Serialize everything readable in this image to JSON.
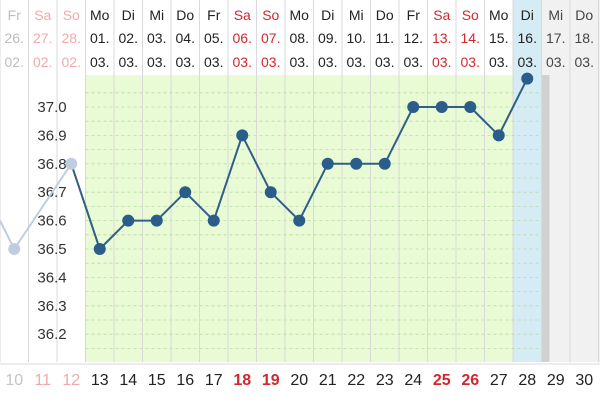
{
  "chart_data": {
    "type": "line",
    "ylim": [
      36.1,
      37.1
    ],
    "y_ticks": [
      36.2,
      36.3,
      36.4,
      36.5,
      36.6,
      36.7,
      36.8,
      36.9,
      37.0
    ],
    "y_tick_labels": [
      "36.2",
      "36.3",
      "36.4",
      "36.5",
      "36.6",
      "36.7",
      "36.8",
      "36.9",
      "37.0"
    ],
    "columns": [
      {
        "weekday": "Fr",
        "date": "26.",
        "month": "02.",
        "cycle_day": "10",
        "weekend": false,
        "active": false,
        "temp": 36.5
      },
      {
        "weekday": "Sa",
        "date": "27.",
        "month": "02.",
        "cycle_day": "11",
        "weekend": true,
        "active": false,
        "temp": null
      },
      {
        "weekday": "So",
        "date": "28.",
        "month": "02.",
        "cycle_day": "12",
        "weekend": true,
        "active": false,
        "temp": 36.8
      },
      {
        "weekday": "Mo",
        "date": "01.",
        "month": "03.",
        "cycle_day": "13",
        "weekend": false,
        "active": true,
        "temp": 36.5
      },
      {
        "weekday": "Di",
        "date": "02.",
        "month": "03.",
        "cycle_day": "14",
        "weekend": false,
        "active": true,
        "temp": 36.6
      },
      {
        "weekday": "Mi",
        "date": "03.",
        "month": "03.",
        "cycle_day": "15",
        "weekend": false,
        "active": true,
        "temp": 36.6
      },
      {
        "weekday": "Do",
        "date": "04.",
        "month": "03.",
        "cycle_day": "16",
        "weekend": false,
        "active": true,
        "temp": 36.7
      },
      {
        "weekday": "Fr",
        "date": "05.",
        "month": "03.",
        "cycle_day": "17",
        "weekend": false,
        "active": true,
        "temp": 36.6
      },
      {
        "weekday": "Sa",
        "date": "06.",
        "month": "03.",
        "cycle_day": "18",
        "weekend": true,
        "active": true,
        "temp": 36.9
      },
      {
        "weekday": "So",
        "date": "07.",
        "month": "03.",
        "cycle_day": "19",
        "weekend": true,
        "active": true,
        "temp": 36.7
      },
      {
        "weekday": "Mo",
        "date": "08.",
        "month": "03.",
        "cycle_day": "20",
        "weekend": false,
        "active": true,
        "temp": 36.6
      },
      {
        "weekday": "Di",
        "date": "09.",
        "month": "03.",
        "cycle_day": "21",
        "weekend": false,
        "active": true,
        "temp": 36.8
      },
      {
        "weekday": "Mi",
        "date": "10.",
        "month": "03.",
        "cycle_day": "22",
        "weekend": false,
        "active": true,
        "temp": 36.8
      },
      {
        "weekday": "Do",
        "date": "11.",
        "month": "03.",
        "cycle_day": "23",
        "weekend": false,
        "active": true,
        "temp": 36.8
      },
      {
        "weekday": "Fr",
        "date": "12.",
        "month": "03.",
        "cycle_day": "24",
        "weekend": false,
        "active": true,
        "temp": 37.0
      },
      {
        "weekday": "Sa",
        "date": "13.",
        "month": "03.",
        "cycle_day": "25",
        "weekend": true,
        "active": true,
        "temp": 37.0
      },
      {
        "weekday": "So",
        "date": "14.",
        "month": "03.",
        "cycle_day": "26",
        "weekend": true,
        "active": true,
        "temp": 37.0
      },
      {
        "weekday": "Mo",
        "date": "15.",
        "month": "03.",
        "cycle_day": "27",
        "weekend": false,
        "active": true,
        "temp": 36.9
      },
      {
        "weekday": "Di",
        "date": "16.",
        "month": "03.",
        "cycle_day": "28",
        "weekend": false,
        "active": true,
        "temp": 37.1
      },
      {
        "weekday": "Mi",
        "date": "17.",
        "month": "03.",
        "cycle_day": "29",
        "weekend": false,
        "active": false,
        "temp": null
      },
      {
        "weekday": "Do",
        "date": "18.",
        "month": "03.",
        "cycle_day": "30",
        "weekend": false,
        "active": false,
        "temp": null
      }
    ],
    "selected_day": "28",
    "grid": true
  },
  "colors": {
    "line": "#2f5e88",
    "point": "#2b5d8b",
    "faded_point": "#c0cde0",
    "weekend_text": "#d0282e",
    "cycle_band": "#e9fbd4",
    "selected_band": "#d6ecf4",
    "future_bg": "#f1f1f1"
  }
}
